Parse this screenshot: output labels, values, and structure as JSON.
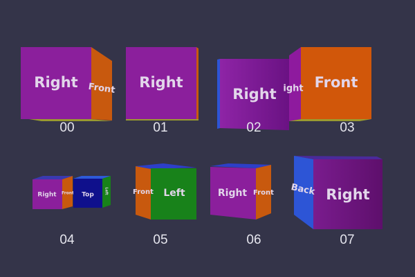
{
  "cubes": [
    {
      "label": "00",
      "faces": [
        "Right",
        "Front"
      ]
    },
    {
      "label": "01",
      "faces": [
        "Right"
      ]
    },
    {
      "label": "02",
      "faces": [
        "Right"
      ]
    },
    {
      "label": "03",
      "faces": [
        "ight",
        "Front"
      ]
    },
    {
      "label": "04",
      "faces": [
        "Right",
        "Front",
        "Top",
        "Left"
      ]
    },
    {
      "label": "05",
      "faces": [
        "Front",
        "Left"
      ]
    },
    {
      "label": "06",
      "faces": [
        "Right",
        "Front"
      ]
    },
    {
      "label": "07",
      "faces": [
        "Back",
        "Right"
      ]
    }
  ]
}
